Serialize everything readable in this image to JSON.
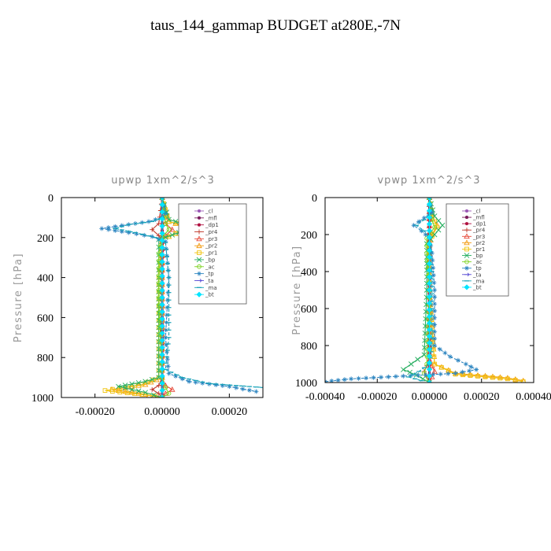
{
  "title": "taus_144_gammap  BUDGET at280E,-7N",
  "chart_data": [
    {
      "type": "line",
      "title": "upwp   1xm^2/s^3",
      "ylabel": "Pressure [hPa]",
      "xlabel": "",
      "xlim": [
        -0.0003,
        0.0003
      ],
      "ylim": [
        1000,
        0
      ],
      "xticks": [
        -0.0002,
        0.0,
        0.0002
      ],
      "xtick_labels": [
        "-0.00020",
        "0.00000",
        "0.00020"
      ],
      "yticks": [
        0,
        200,
        400,
        600,
        800,
        1000
      ],
      "ytick_labels": [
        "0",
        "200",
        "400",
        "600",
        "800",
        "1000"
      ],
      "grid": false,
      "legend": "top-right",
      "series": [
        {
          "name": "_cl",
          "color": "#9b59b6",
          "marker": "dot",
          "x": [
            0,
            0,
            0,
            0,
            0,
            0
          ],
          "y": [
            0,
            200,
            400,
            600,
            800,
            1000
          ]
        },
        {
          "name": "_mfl",
          "color": "#7a1c5c",
          "marker": "dot",
          "x": [
            0,
            0,
            0,
            0,
            0,
            0
          ],
          "y": [
            0,
            200,
            400,
            600,
            800,
            1000
          ]
        },
        {
          "name": "_dp1",
          "color": "#b01040",
          "marker": "dot",
          "x": [
            0,
            0,
            0,
            0,
            0,
            0
          ],
          "y": [
            0,
            200,
            400,
            600,
            800,
            1000
          ]
        },
        {
          "name": "_pr4",
          "color": "#c0392b",
          "marker": "plus",
          "x": [
            0,
            -1e-05,
            -3e-05,
            -1e-05,
            0,
            0,
            0,
            -1e-05,
            -3e-05,
            -1e-05,
            0
          ],
          "y": [
            0,
            130,
            160,
            190,
            220,
            400,
            900,
            940,
            960,
            980,
            1000
          ]
        },
        {
          "name": "_pr3",
          "color": "#e74c3c",
          "marker": "triangle",
          "x": [
            0,
            1e-05,
            3e-05,
            1e-05,
            0,
            0,
            0,
            1e-05,
            3e-05,
            1e-05,
            0
          ],
          "y": [
            0,
            130,
            160,
            190,
            220,
            400,
            900,
            940,
            960,
            980,
            1000
          ]
        },
        {
          "name": "_pr2",
          "color": "#f39c12",
          "marker": "triangle",
          "x": [
            0,
            2e-05,
            8e-05,
            4e-05,
            0,
            0,
            0,
            -5e-05,
            -0.00015,
            -5e-05,
            0
          ],
          "y": [
            0,
            120,
            150,
            180,
            210,
            400,
            900,
            935,
            960,
            985,
            1000
          ]
        },
        {
          "name": "_pr1",
          "color": "#f1c40f",
          "marker": "square",
          "x": [
            0,
            2e-05,
            9e-05,
            4e-05,
            0,
            -1e-05,
            -1e-05,
            -6e-05,
            -0.00017,
            -6e-05,
            0
          ],
          "y": [
            0,
            120,
            145,
            180,
            210,
            400,
            900,
            935,
            965,
            985,
            1000
          ]
        },
        {
          "name": "_bp",
          "color": "#27ae60",
          "marker": "x",
          "x": [
            0,
            2e-05,
            0.0001,
            5e-05,
            -1e-05,
            -1e-05,
            -1e-05,
            -5e-05,
            -0.00013,
            -5e-05,
            0
          ],
          "y": [
            0,
            110,
            150,
            175,
            210,
            400,
            900,
            920,
            945,
            975,
            1000
          ]
        },
        {
          "name": "_ac",
          "color": "#7ed321",
          "marker": "circle",
          "x": [
            0,
            1e-05,
            2e-05,
            0,
            -1e-05,
            -1e-05,
            0,
            1e-05,
            2e-05,
            0
          ],
          "y": [
            0,
            130,
            160,
            200,
            280,
            500,
            900,
            950,
            980,
            1000
          ]
        },
        {
          "name": "_tp",
          "color": "#2e86c1",
          "marker": "star",
          "x": [
            0,
            1e-05,
            0,
            -4e-05,
            -0.0001,
            -0.00018,
            -0.0001,
            -3e-05,
            1e-05,
            2e-05,
            1e-05,
            2e-05,
            8e-05,
            0.0002,
            0.00028
          ],
          "y": [
            0,
            80,
            100,
            120,
            135,
            155,
            175,
            195,
            220,
            400,
            700,
            880,
            920,
            945,
            970
          ]
        },
        {
          "name": "_ta",
          "color": "#5b4fd6",
          "marker": "arrow",
          "x": [
            0,
            0,
            0,
            0,
            0
          ],
          "y": [
            0,
            250,
            500,
            750,
            1000
          ]
        },
        {
          "name": "_ma",
          "color": "#16a2b8",
          "marker": "dash",
          "x": [
            0,
            1e-05,
            0,
            -3e-05,
            -0.0001,
            -0.00014,
            -8e-05,
            -2e-05,
            1e-05,
            2e-05,
            2e-05,
            1e-05,
            6e-05,
            0.00014,
            0.0003
          ],
          "y": [
            0,
            80,
            100,
            120,
            135,
            155,
            175,
            200,
            225,
            400,
            700,
            860,
            900,
            930,
            950
          ]
        },
        {
          "name": "_bt",
          "color": "#00e5ff",
          "marker": "diamond",
          "x": [
            0,
            0,
            0,
            0,
            0
          ],
          "y": [
            0,
            250,
            500,
            750,
            1000
          ]
        }
      ]
    },
    {
      "type": "line",
      "title": "vpwp   1xm^2/s^3",
      "ylabel": "Pressure [hPa]",
      "xlabel": "",
      "xlim": [
        -0.0004,
        0.0004
      ],
      "ylim": [
        1000,
        0
      ],
      "xticks": [
        -0.0004,
        -0.0002,
        0.0,
        0.0002,
        0.0004
      ],
      "xtick_labels": [
        "-0.00040",
        "-0.00020",
        "0.00000",
        "0.00020",
        "0.00040"
      ],
      "yticks": [
        0,
        200,
        400,
        600,
        800,
        1000
      ],
      "ytick_labels": [
        "0",
        "200",
        "400",
        "600",
        "800",
        "1000"
      ],
      "grid": false,
      "legend": "top-right",
      "series": [
        {
          "name": "_cl",
          "color": "#9b59b6",
          "marker": "dot",
          "x": [
            0,
            0,
            0,
            0,
            0,
            0
          ],
          "y": [
            0,
            200,
            400,
            600,
            800,
            1000
          ]
        },
        {
          "name": "_mfl",
          "color": "#7a1c5c",
          "marker": "dot",
          "x": [
            0,
            0,
            0,
            0,
            0,
            0
          ],
          "y": [
            0,
            200,
            400,
            600,
            800,
            1000
          ]
        },
        {
          "name": "_dp1",
          "color": "#b01040",
          "marker": "dot",
          "x": [
            0,
            0,
            0,
            0,
            0,
            0
          ],
          "y": [
            0,
            200,
            400,
            600,
            800,
            1000
          ]
        },
        {
          "name": "_pr4",
          "color": "#c0392b",
          "marker": "plus",
          "x": [
            0,
            0,
            0,
            -1e-05,
            -2e-05,
            -1e-05,
            0
          ],
          "y": [
            0,
            500,
            880,
            910,
            940,
            970,
            1000
          ]
        },
        {
          "name": "_pr3",
          "color": "#e74c3c",
          "marker": "triangle",
          "x": [
            0,
            0,
            0,
            1e-05,
            2e-05,
            1e-05,
            0
          ],
          "y": [
            0,
            500,
            880,
            910,
            940,
            970,
            1000
          ]
        },
        {
          "name": "_pr2",
          "color": "#f39c12",
          "marker": "triangle",
          "x": [
            0,
            1e-05,
            3e-05,
            1e-05,
            0,
            0,
            2e-05,
            0.0001,
            0.0003,
            0.00036
          ],
          "y": [
            0,
            100,
            150,
            200,
            260,
            500,
            900,
            950,
            975,
            990
          ]
        },
        {
          "name": "_pr1",
          "color": "#f1c40f",
          "marker": "square",
          "x": [
            0,
            1e-05,
            3e-05,
            1e-05,
            0,
            0,
            2e-05,
            0.0001,
            0.0003,
            0.00036
          ],
          "y": [
            0,
            100,
            160,
            210,
            260,
            500,
            900,
            955,
            980,
            995
          ]
        },
        {
          "name": "_bp",
          "color": "#27ae60",
          "marker": "x",
          "x": [
            0,
            2e-05,
            5e-05,
            2e-05,
            -1e-05,
            -1e-05,
            -2e-05,
            -7e-05,
            -0.0001,
            -5e-05,
            0
          ],
          "y": [
            0,
            100,
            150,
            200,
            250,
            500,
            850,
            900,
            930,
            960,
            1000
          ]
        },
        {
          "name": "_ac",
          "color": "#7ed321",
          "marker": "circle",
          "x": [
            0,
            1e-05,
            2e-05,
            -1e-05,
            -1e-05,
            0,
            -1e-05,
            -2e-05,
            0
          ],
          "y": [
            0,
            120,
            160,
            220,
            300,
            500,
            900,
            950,
            1000
          ]
        },
        {
          "name": "_tp",
          "color": "#2e86c1",
          "marker": "star",
          "x": [
            0,
            1e-05,
            -2e-05,
            -6e-05,
            -3e-05,
            0,
            1e-05,
            2e-05,
            2e-05,
            8e-05,
            0.00014,
            0.00018,
            0.0001,
            -0.0001,
            -0.0003,
            -0.0004
          ],
          "y": [
            0,
            80,
            110,
            150,
            180,
            220,
            300,
            500,
            800,
            860,
            900,
            930,
            950,
            965,
            980,
            995
          ]
        },
        {
          "name": "_ta",
          "color": "#5b4fd6",
          "marker": "arrow",
          "x": [
            0,
            0,
            0,
            0,
            0
          ],
          "y": [
            0,
            250,
            500,
            750,
            1000
          ]
        },
        {
          "name": "_ma",
          "color": "#16a2b8",
          "marker": "dash",
          "x": [
            0,
            0,
            -2e-05,
            -5e-05,
            -2e-05,
            0,
            1e-05,
            1e-05,
            0,
            -4e-05,
            -8e-05,
            -3e-05
          ],
          "y": [
            0,
            90,
            120,
            150,
            180,
            220,
            400,
            800,
            900,
            940,
            970,
            990
          ]
        },
        {
          "name": "_bt",
          "color": "#00e5ff",
          "marker": "diamond",
          "x": [
            0,
            0,
            0,
            0,
            0
          ],
          "y": [
            0,
            250,
            500,
            750,
            1000
          ]
        }
      ]
    }
  ]
}
